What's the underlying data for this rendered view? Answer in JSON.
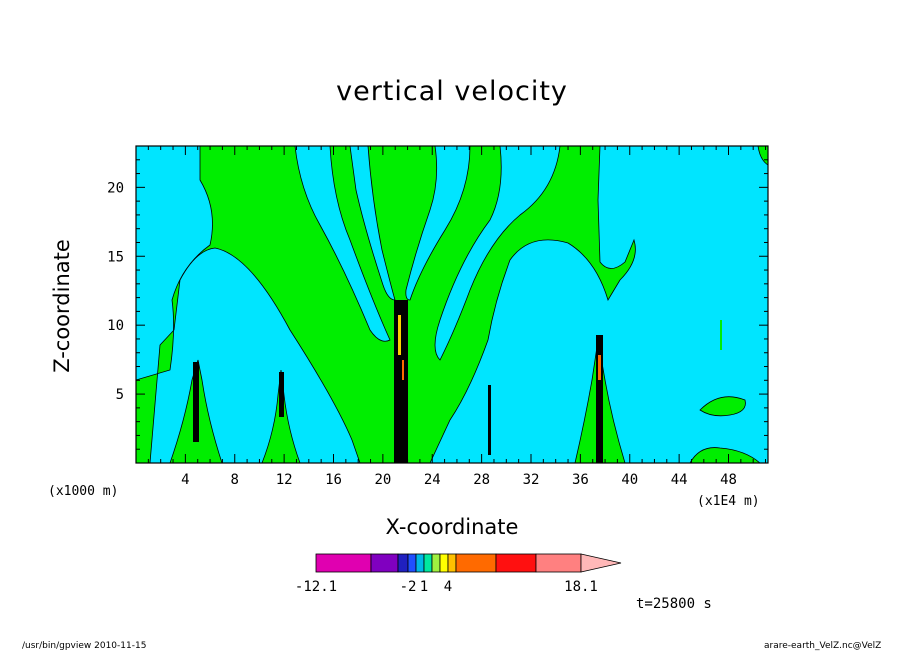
{
  "chart_data": {
    "type": "heatmap",
    "title": "vertical velocity",
    "xlabel": "X-coordinate",
    "ylabel": "Z-coordinate",
    "x_unit_left": "(x1000 m)",
    "x_unit_right": "(x1E4 m)",
    "x_ticks": [
      "4",
      "8",
      "12",
      "16",
      "20",
      "24",
      "28",
      "32",
      "36",
      "40",
      "44",
      "48"
    ],
    "y_ticks": [
      "5",
      "10",
      "15",
      "20"
    ],
    "xlim": [
      0,
      51.2
    ],
    "ylim": [
      0,
      23
    ],
    "colorbar": {
      "labels": [
        "-12.1",
        "-2",
        "1",
        "4",
        "18.1"
      ],
      "colors": [
        "#e000b0",
        "#8000c0",
        "#2020c0",
        "#2050ff",
        "#00b8e6",
        "#00e8a0",
        "#a0f040",
        "#ffff00",
        "#ffc000",
        "#ff6a00",
        "#ff1010",
        "#ff8080",
        "#ffb8b8"
      ]
    },
    "field_colors": {
      "background": "#00e5ff",
      "weak_updraft": "#00ee00",
      "strong_core": "#000000"
    },
    "time_label": "t=25800 s"
  },
  "footer": {
    "left": "/usr/bin/gpview   2010-11-15",
    "right": "arare-earth_VelZ.nc@VelZ"
  }
}
